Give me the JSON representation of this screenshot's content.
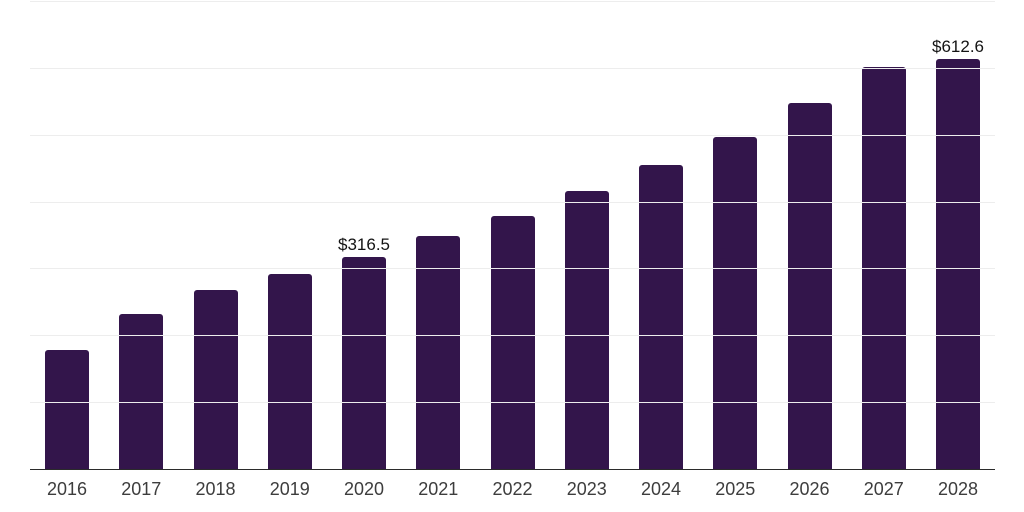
{
  "chart_data": {
    "type": "bar",
    "title": "",
    "xlabel": "",
    "ylabel": "",
    "categories": [
      "2016",
      "2017",
      "2018",
      "2019",
      "2020",
      "2021",
      "2022",
      "2023",
      "2024",
      "2025",
      "2026",
      "2027",
      "2028"
    ],
    "values": [
      178.0,
      231.9,
      267.9,
      292.3,
      316.5,
      348.3,
      378.4,
      415.2,
      454.4,
      496.2,
      547.2,
      601.2,
      612.6
    ],
    "value_labels": [
      {
        "category": "2020",
        "text": "$316.5"
      },
      {
        "category": "2028",
        "text": "$612.6"
      }
    ],
    "ylim": [
      0,
      700
    ],
    "gridline_interval": 100,
    "grid": true,
    "legend_position": "none"
  },
  "style": {
    "bar_color": "#33154b",
    "gridline_color": "#ededed",
    "axis_color": "#2b2b2b",
    "category_label_color": "#3d3d3d",
    "value_label_color": "#141414",
    "background_color": "#ffffff"
  }
}
